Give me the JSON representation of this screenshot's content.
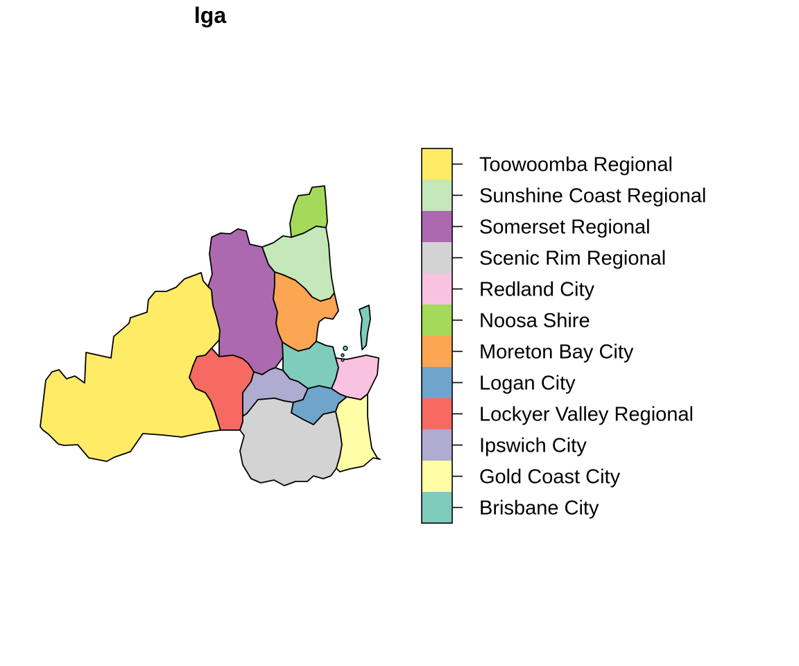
{
  "title": "lga",
  "legend": {
    "items": [
      {
        "name": "Toowoomba Regional",
        "color": "#FFEB66"
      },
      {
        "name": "Sunshine Coast Regional",
        "color": "#C4E8B9"
      },
      {
        "name": "Somerset Regional",
        "color": "#AD69B0"
      },
      {
        "name": "Scenic Rim Regional",
        "color": "#D3D3D3"
      },
      {
        "name": "Redland City",
        "color": "#F9C2E0"
      },
      {
        "name": "Noosa Shire",
        "color": "#A5D95A"
      },
      {
        "name": "Moreton Bay City",
        "color": "#FCA552"
      },
      {
        "name": "Logan City",
        "color": "#6FA4CB"
      },
      {
        "name": "Lockyer Valley Regional",
        "color": "#F66A63"
      },
      {
        "name": "Ipswich City",
        "color": "#B0ABD1"
      },
      {
        "name": "Gold Coast City",
        "color": "#FFFDA6"
      },
      {
        "name": "Brisbane City",
        "color": "#7FCBBC"
      }
    ]
  }
}
